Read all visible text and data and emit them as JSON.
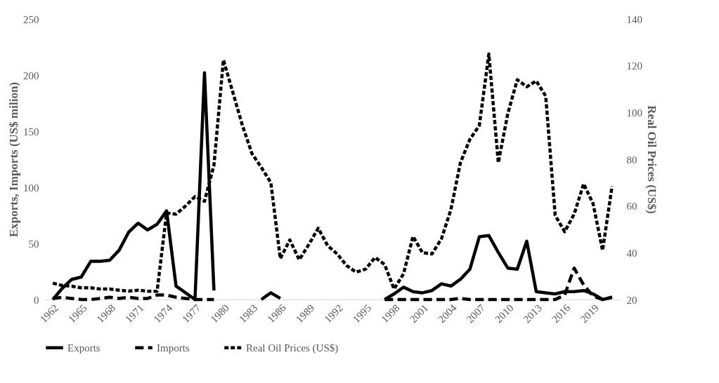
{
  "chart_data": {
    "type": "line",
    "ylabel": "Exports, Imports (US$ milion)",
    "y2label": "Real Oil Prices (US$)",
    "categories": [
      "1962",
      null,
      null,
      "1965",
      null,
      null,
      "1968",
      null,
      null,
      "1971",
      null,
      null,
      "1974",
      null,
      null,
      "1977",
      null,
      null,
      "1980",
      null,
      null,
      "1983",
      null,
      null,
      "1986",
      null,
      null,
      "1989",
      null,
      null,
      "1992",
      null,
      null,
      "1995",
      null,
      null,
      "1998",
      null,
      null,
      "2001",
      null,
      null,
      "2004",
      null,
      null,
      "2007",
      null,
      null,
      "2010",
      null,
      null,
      "2013",
      null,
      null,
      "2016",
      null,
      null,
      "2019",
      null,
      null
    ],
    "series": [
      {
        "name": "Exports",
        "color": "#000000",
        "line_style": "solid",
        "values": [
          0,
          10,
          18,
          20,
          34,
          34,
          35,
          44,
          60,
          68,
          62,
          67,
          79,
          12,
          6,
          0,
          202,
          8,
          null,
          null,
          null,
          null,
          0,
          6,
          1,
          null,
          null,
          null,
          null,
          null,
          null,
          null,
          null,
          null,
          null,
          0,
          5,
          11,
          7,
          6,
          8,
          14,
          12,
          18,
          27,
          56,
          57,
          42,
          28,
          27,
          52,
          7,
          6,
          5,
          7,
          7,
          8,
          5,
          0,
          2
        ]
      },
      {
        "name": "Imports",
        "color": "#000000",
        "line_style": "dashed",
        "values": [
          1,
          2,
          1,
          0,
          0,
          1,
          2,
          1,
          2,
          1,
          1,
          4,
          4,
          2,
          1,
          0,
          0,
          0,
          null,
          null,
          null,
          null,
          null,
          null,
          null,
          null,
          null,
          null,
          null,
          null,
          null,
          null,
          null,
          null,
          null,
          0,
          0,
          0,
          0,
          0,
          0,
          0,
          0,
          1,
          0,
          0,
          0,
          0,
          0,
          0,
          0,
          0,
          0,
          0,
          4,
          28,
          13,
          3,
          0,
          2
        ]
      },
      {
        "name": "Real Oil Prices (US$)",
        "color": "#000000",
        "line_style": "dashed",
        "axis": "y2",
        "values": [
          27,
          26,
          25.7,
          25,
          25,
          24.5,
          24.5,
          24,
          23.6,
          24,
          23.6,
          23.5,
          57,
          56.5,
          60,
          64,
          62,
          77.5,
          122.5,
          108.5,
          94.5,
          82.5,
          76.5,
          70,
          37.5,
          45.5,
          37,
          43.5,
          50.5,
          43,
          39.5,
          34.5,
          31.7,
          33,
          38,
          35,
          24.5,
          31,
          47,
          40,
          39.5,
          46,
          58.5,
          78.5,
          88.5,
          94.5,
          125,
          78.5,
          99.5,
          114,
          111,
          113.5,
          107,
          56,
          49,
          56.5,
          69.5,
          61,
          41,
          68.5
        ]
      }
    ],
    "ylim": [
      0,
      250
    ],
    "yticks": [
      0,
      50,
      100,
      150,
      200,
      250
    ],
    "y2lim": [
      20,
      140
    ],
    "y2ticks": [
      20,
      40,
      60,
      80,
      100,
      120,
      140
    ],
    "legend": "bottom"
  }
}
